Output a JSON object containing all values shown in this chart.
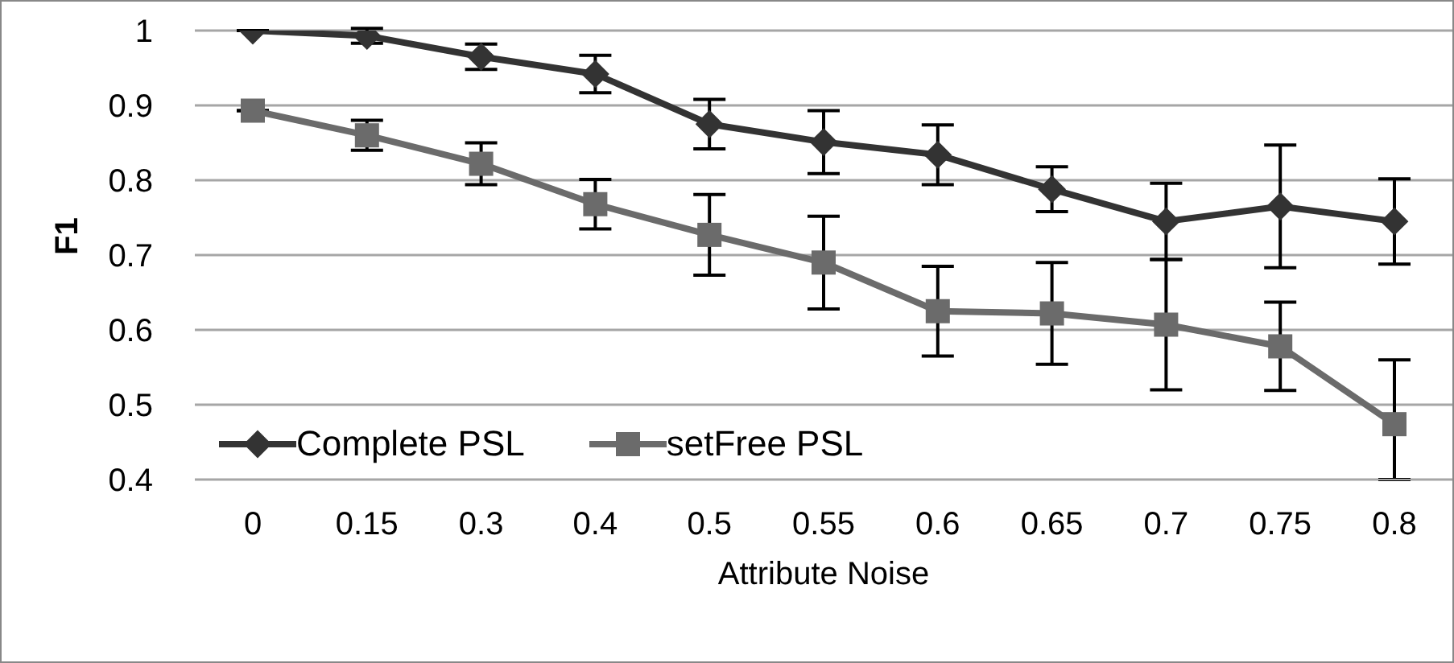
{
  "chart_data": {
    "type": "line",
    "xlabel": "Attribute Noise",
    "ylabel": "F1",
    "categories": [
      "0",
      "0.15",
      "0.3",
      "0.4",
      "0.5",
      "0.55",
      "0.6",
      "0.65",
      "0.7",
      "0.75",
      "0.8"
    ],
    "series": [
      {
        "name": "Complete PSL",
        "color": "#333333",
        "marker": "diamond",
        "values": [
          1.0,
          0.993,
          0.965,
          0.942,
          0.875,
          0.851,
          0.834,
          0.788,
          0.745,
          0.765,
          0.745
        ],
        "errors": [
          null,
          0.01,
          0.017,
          0.025,
          0.033,
          0.042,
          0.04,
          0.03,
          0.051,
          0.082,
          0.057
        ]
      },
      {
        "name": "setFree PSL",
        "color": "#6b6b6b",
        "marker": "square",
        "values": [
          0.893,
          0.86,
          0.822,
          0.768,
          0.727,
          0.69,
          0.625,
          0.622,
          0.607,
          0.578,
          0.474
        ],
        "errors": [
          null,
          0.02,
          0.028,
          0.033,
          0.054,
          0.062,
          0.06,
          0.068,
          0.087,
          0.059,
          [
            0.4,
            0.56
          ]
        ]
      }
    ],
    "ylim": [
      0.4,
      1
    ],
    "yticks": [
      0.4,
      0.5,
      0.6,
      0.7,
      0.8,
      0.9,
      1
    ],
    "grid": "y",
    "legend": "bottom left"
  }
}
